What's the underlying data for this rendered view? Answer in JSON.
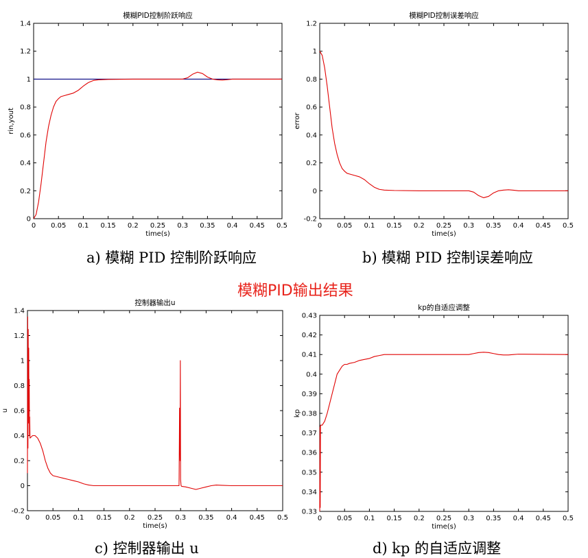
{
  "figure_heading": "模糊PID输出结果",
  "colors": {
    "rin": "#000080",
    "response": "#e00000",
    "axis": "#000000"
  },
  "chart_data": [
    {
      "type": "line",
      "caption": "a)  模糊 PID 控制阶跃响应",
      "title": "模糊PID控制阶跃响应",
      "xlabel": "time(s)",
      "ylabel": "rin,yout",
      "xlim": [
        0,
        0.5
      ],
      "ylim": [
        0,
        1.4
      ],
      "xticks": [
        "0",
        "0.05",
        "0.1",
        "0.15",
        "0.2",
        "0.25",
        "0.3",
        "0.35",
        "0.4",
        "0.45",
        "0.5"
      ],
      "yticks": [
        "0",
        "0.2",
        "0.4",
        "0.6",
        "0.8",
        "1",
        "1.2",
        "1.4"
      ],
      "series": [
        {
          "color": "#000080",
          "x": [
            0,
            0.5
          ],
          "y": [
            1,
            1
          ]
        },
        {
          "color": "#e00000",
          "x": [
            0,
            0.005,
            0.01,
            0.015,
            0.02,
            0.025,
            0.03,
            0.035,
            0.04,
            0.045,
            0.05,
            0.055,
            0.06,
            0.07,
            0.08,
            0.09,
            0.1,
            0.11,
            0.12,
            0.13,
            0.15,
            0.2,
            0.3,
            0.31,
            0.32,
            0.33,
            0.34,
            0.35,
            0.36,
            0.37,
            0.38,
            0.39,
            0.4,
            0.5
          ],
          "y": [
            0,
            0.03,
            0.12,
            0.25,
            0.4,
            0.55,
            0.66,
            0.74,
            0.8,
            0.84,
            0.86,
            0.875,
            0.88,
            0.89,
            0.9,
            0.92,
            0.95,
            0.975,
            0.99,
            0.995,
            0.998,
            1.0,
            1.0,
            1.01,
            1.035,
            1.05,
            1.04,
            1.015,
            1.0,
            0.995,
            0.993,
            0.996,
            1.0,
            1.0
          ]
        }
      ]
    },
    {
      "type": "line",
      "caption": "b)  模糊 PID 控制误差响应",
      "title": "模糊PID控制误差响应",
      "xlabel": "time(s)",
      "ylabel": "error",
      "xlim": [
        0,
        0.5
      ],
      "ylim": [
        -0.2,
        1.2
      ],
      "xticks": [
        "0",
        "0.05",
        "0.1",
        "0.15",
        "0.2",
        "0.25",
        "0.3",
        "0.35",
        "0.4",
        "0.45",
        "0.5"
      ],
      "yticks": [
        "-0.2",
        "0",
        "0.2",
        "0.4",
        "0.6",
        "0.8",
        "1",
        "1.2"
      ],
      "series": [
        {
          "color": "#e00000",
          "x": [
            0,
            0.005,
            0.01,
            0.015,
            0.02,
            0.025,
            0.03,
            0.035,
            0.04,
            0.045,
            0.05,
            0.055,
            0.06,
            0.07,
            0.08,
            0.09,
            0.1,
            0.11,
            0.12,
            0.13,
            0.15,
            0.2,
            0.3,
            0.31,
            0.32,
            0.33,
            0.34,
            0.35,
            0.36,
            0.37,
            0.38,
            0.39,
            0.4,
            0.5
          ],
          "y": [
            1,
            0.97,
            0.88,
            0.75,
            0.6,
            0.45,
            0.34,
            0.26,
            0.2,
            0.16,
            0.14,
            0.125,
            0.12,
            0.11,
            0.1,
            0.08,
            0.05,
            0.025,
            0.01,
            0.005,
            0.002,
            0.0,
            0.0,
            -0.01,
            -0.035,
            -0.05,
            -0.04,
            -0.015,
            0.0,
            0.005,
            0.007,
            0.004,
            0.0,
            0.0
          ]
        }
      ]
    },
    {
      "type": "line",
      "caption": "c)  控制器输出 u",
      "title": "控制器输出u",
      "xlabel": "time(s)",
      "ylabel": "u",
      "xlim": [
        0,
        0.5
      ],
      "ylim": [
        -0.2,
        1.4
      ],
      "xticks": [
        "0",
        "0.05",
        "0.1",
        "0.15",
        "0.2",
        "0.25",
        "0.3",
        "0.35",
        "0.4",
        "0.45",
        "0.5"
      ],
      "yticks": [
        "-0.2",
        "0",
        "0.2",
        "0.4",
        "0.6",
        "0.8",
        "1",
        "1.2",
        "1.4"
      ],
      "series": [
        {
          "color": "#e00000",
          "x": [
            0,
            0.0005,
            0.001,
            0.0015,
            0.002,
            0.0025,
            0.003,
            0.0035,
            0.004,
            0.0045,
            0.005,
            0.01,
            0.015,
            0.02,
            0.025,
            0.03,
            0.035,
            0.04,
            0.045,
            0.05,
            0.06,
            0.07,
            0.08,
            0.09,
            0.1,
            0.11,
            0.12,
            0.13,
            0.15,
            0.2,
            0.297,
            0.298,
            0.299,
            0.2995,
            0.3,
            0.301,
            0.302,
            0.31,
            0.32,
            0.33,
            0.34,
            0.35,
            0.36,
            0.37,
            0.38,
            0.4,
            0.5
          ],
          "y": [
            0.1,
            1.35,
            0.3,
            1.25,
            0.5,
            1.1,
            0.6,
            0.85,
            0.4,
            0.55,
            0.38,
            0.4,
            0.4,
            0.38,
            0.34,
            0.28,
            0.2,
            0.14,
            0.1,
            0.08,
            0.07,
            0.06,
            0.05,
            0.04,
            0.03,
            0.015,
            0.005,
            0.0,
            0.0,
            0.0,
            0.0,
            0.62,
            0.2,
            1.0,
            0.05,
            0.0,
            -0.005,
            -0.01,
            -0.02,
            -0.03,
            -0.02,
            -0.01,
            0.0,
            0.005,
            0.003,
            0.0,
            0.0
          ]
        }
      ]
    },
    {
      "type": "line",
      "caption": "d) kp 的自适应调整",
      "title": "kp的自适应调整",
      "xlabel": "time(s)",
      "ylabel": "kp",
      "xlim": [
        0,
        0.5
      ],
      "ylim": [
        0.33,
        0.43
      ],
      "xticks": [
        "0",
        "0.05",
        "0.1",
        "0.15",
        "0.2",
        "0.25",
        "0.3",
        "0.35",
        "0.4",
        "0.45",
        "0.5"
      ],
      "yticks": [
        "0.33",
        "0.34",
        "0.35",
        "0.36",
        "0.37",
        "0.38",
        "0.39",
        "0.4",
        "0.41",
        "0.42",
        "0.43"
      ],
      "series": [
        {
          "color": "#e00000",
          "x": [
            0,
            0.0005,
            0.001,
            0.0015,
            0.002,
            0.005,
            0.01,
            0.015,
            0.02,
            0.025,
            0.03,
            0.035,
            0.04,
            0.045,
            0.05,
            0.055,
            0.06,
            0.07,
            0.08,
            0.09,
            0.1,
            0.11,
            0.12,
            0.13,
            0.15,
            0.2,
            0.3,
            0.31,
            0.32,
            0.33,
            0.34,
            0.35,
            0.36,
            0.37,
            0.38,
            0.39,
            0.4,
            0.5
          ],
          "y": [
            0.33,
            0.373,
            0.332,
            0.374,
            0.374,
            0.374,
            0.376,
            0.38,
            0.385,
            0.39,
            0.395,
            0.4,
            0.402,
            0.404,
            0.405,
            0.405,
            0.4055,
            0.406,
            0.407,
            0.4075,
            0.408,
            0.409,
            0.4095,
            0.41,
            0.41,
            0.41,
            0.41,
            0.4105,
            0.411,
            0.4112,
            0.411,
            0.4105,
            0.41,
            0.4098,
            0.4098,
            0.41,
            0.4102,
            0.41
          ]
        }
      ]
    }
  ]
}
